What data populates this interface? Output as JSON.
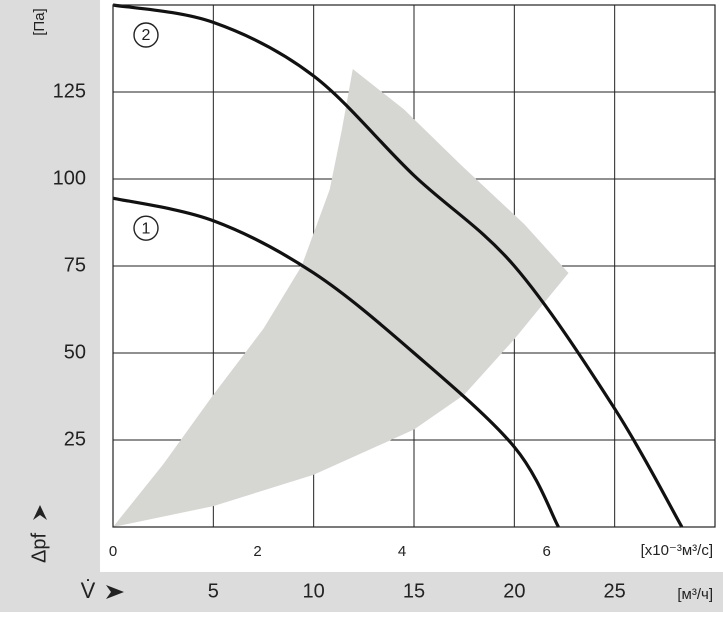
{
  "chart_data": {
    "type": "line",
    "y_unit": "[Па]",
    "y_label": "Δpf",
    "x_label": "V̇",
    "x_unit": "[м³/ч]",
    "x2_unit": "[x10⁻³м³/с]",
    "xlim": [
      0,
      30
    ],
    "xticks": [
      5,
      10,
      15,
      20,
      25
    ],
    "x2lim": [
      0,
      8.33
    ],
    "x2ticks": [
      0,
      2,
      4,
      6
    ],
    "ylim": [
      0,
      150
    ],
    "yticks": [
      25,
      50,
      75,
      100,
      125
    ],
    "grid": true,
    "operating_range": {
      "color": "#d6d6d3",
      "x": [
        0,
        2.5,
        5,
        7.5,
        9.4,
        10.8,
        11.4,
        11.95,
        14.5,
        17.35,
        20.5,
        22.7,
        20,
        17.5,
        15,
        10,
        5,
        0
      ],
      "y": [
        0,
        18,
        38,
        57,
        75,
        97,
        114,
        131.6,
        120,
        104,
        87,
        73,
        54,
        38,
        28,
        15,
        6,
        0
      ]
    },
    "series": [
      {
        "name": "1",
        "color": "#111",
        "x": [
          0,
          5,
          10,
          15,
          20,
          22.2
        ],
        "y": [
          94.5,
          88,
          73,
          50,
          23,
          0
        ]
      },
      {
        "name": "2",
        "color": "#111",
        "x": [
          0,
          5,
          10,
          15,
          20,
          25,
          28.35
        ],
        "y": [
          150,
          145,
          129.6,
          101,
          75,
          34,
          0
        ]
      }
    ]
  }
}
